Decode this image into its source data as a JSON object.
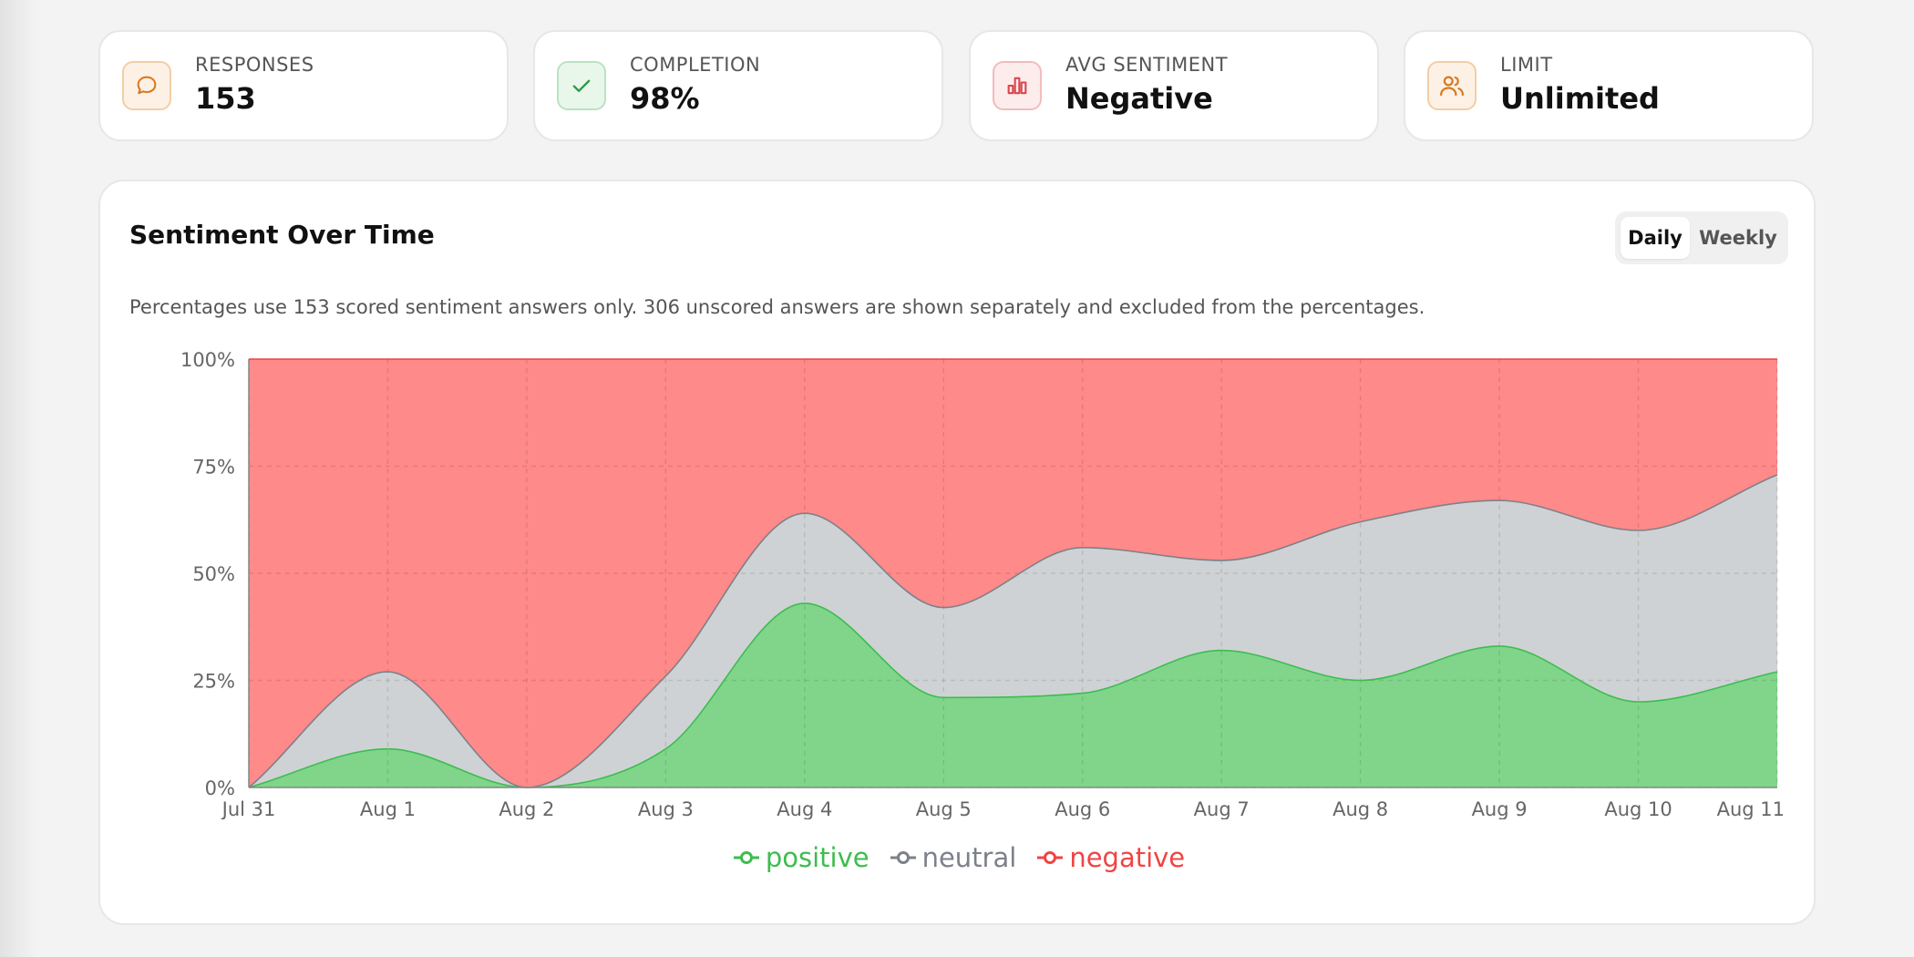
{
  "stats": [
    {
      "label": "RESPONSES",
      "value": "153",
      "icon": "chat-bubble-icon",
      "color": "#d97a1e",
      "bg": "#fdf1e6",
      "border": "#f3cda6"
    },
    {
      "label": "COMPLETION",
      "value": "98%",
      "icon": "checkmark-icon",
      "color": "#2f9a45",
      "bg": "#e9f7eb",
      "border": "#b9e2c1"
    },
    {
      "label": "AVG SENTIMENT",
      "value": "Negative",
      "icon": "bar-chart-icon",
      "color": "#d9474d",
      "bg": "#fdecec",
      "border": "#f1bcbd"
    },
    {
      "label": "LIMIT",
      "value": "Unlimited",
      "icon": "users-icon",
      "color": "#d97a1e",
      "bg": "#fdf1e6",
      "border": "#f3cda6"
    }
  ],
  "chart_card": {
    "title": "Sentiment Over Time",
    "toggle": {
      "daily": "Daily",
      "weekly": "Weekly",
      "selected": "Daily"
    },
    "note": "Percentages use 153 scored sentiment answers only. 306 unscored answers are shown separately and excluded from the percentages."
  },
  "chart_data": {
    "type": "area",
    "stacked": true,
    "x": [
      "Jul 31",
      "Aug 1",
      "Aug 2",
      "Aug 3",
      "Aug 4",
      "Aug 5",
      "Aug 6",
      "Aug 7",
      "Aug 8",
      "Aug 9",
      "Aug 10",
      "Aug 11"
    ],
    "series": [
      {
        "name": "positive",
        "color": "#3dbd4e",
        "fill": "#80d58b",
        "values": [
          0,
          9,
          0,
          9,
          43,
          21,
          22,
          32,
          25,
          33,
          20,
          27
        ]
      },
      {
        "name": "neutral",
        "color": "#7c8189",
        "fill": "#cfd2d5",
        "values": [
          0,
          18,
          0,
          17,
          21,
          21,
          34,
          21,
          37,
          34,
          40,
          46
        ]
      },
      {
        "name": "negative",
        "color": "#ef4444",
        "fill": "#fe8a89",
        "values": [
          100,
          73,
          100,
          74,
          36,
          58,
          44,
          47,
          38,
          33,
          40,
          27
        ]
      }
    ],
    "yticks": [
      "0%",
      "25%",
      "50%",
      "75%",
      "100%"
    ],
    "ylim": [
      0,
      100
    ],
    "grid": true,
    "legend": "bottom-center"
  }
}
